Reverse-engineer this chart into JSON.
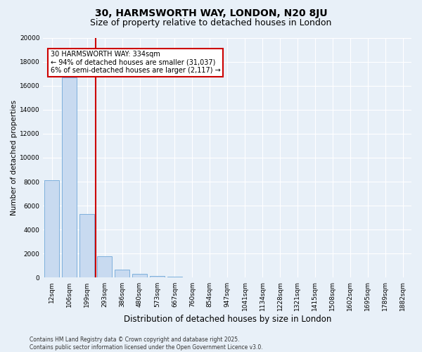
{
  "title1": "30, HARMSWORTH WAY, LONDON, N20 8JU",
  "title2": "Size of property relative to detached houses in London",
  "xlabel": "Distribution of detached houses by size in London",
  "ylabel": "Number of detached properties",
  "bar_labels": [
    "12sqm",
    "106sqm",
    "199sqm",
    "293sqm",
    "386sqm",
    "480sqm",
    "573sqm",
    "667sqm",
    "760sqm",
    "854sqm",
    "947sqm",
    "1041sqm",
    "1134sqm",
    "1228sqm",
    "1321sqm",
    "1415sqm",
    "1508sqm",
    "1602sqm",
    "1695sqm",
    "1789sqm",
    "1882sqm"
  ],
  "bar_values": [
    8100,
    16700,
    5300,
    1800,
    700,
    300,
    150,
    80,
    40,
    15,
    8,
    4,
    2,
    1,
    1,
    0,
    0,
    0,
    0,
    0,
    0
  ],
  "bar_color": "#c8daf0",
  "bar_edge_color": "#6fa8d8",
  "vline_color": "#cc0000",
  "vline_pos": 2.5,
  "ylim": [
    0,
    20000
  ],
  "yticks": [
    0,
    2000,
    4000,
    6000,
    8000,
    10000,
    12000,
    14000,
    16000,
    18000,
    20000
  ],
  "annotation_text": "30 HARMSWORTH WAY: 334sqm\n← 94% of detached houses are smaller (31,037)\n6% of semi-detached houses are larger (2,117) →",
  "annotation_box_facecolor": "#ffffff",
  "annotation_box_edgecolor": "#cc0000",
  "footnote": "Contains HM Land Registry data © Crown copyright and database right 2025.\nContains public sector information licensed under the Open Government Licence v3.0.",
  "bg_color": "#e8f0f8",
  "plot_bg_color": "#e8f0f8",
  "grid_color": "#ffffff",
  "title1_fontsize": 10,
  "title2_fontsize": 9,
  "tick_fontsize": 6.5,
  "ylabel_fontsize": 7.5,
  "xlabel_fontsize": 8.5,
  "annotation_fontsize": 7,
  "footnote_fontsize": 5.5
}
